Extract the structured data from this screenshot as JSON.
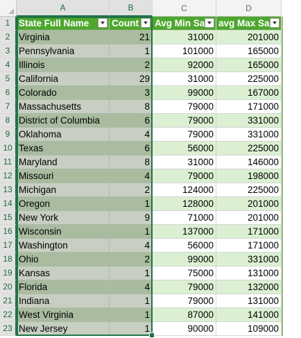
{
  "columns": [
    "A",
    "B",
    "C",
    "D"
  ],
  "headers": {
    "a": "State Full Name",
    "b": "Count",
    "c": "Avg Min Sal",
    "d": "avg Max Sal"
  },
  "rows": [
    {
      "n": "2",
      "state": "Virginia",
      "count": "21",
      "min": "31000",
      "max": "201000"
    },
    {
      "n": "3",
      "state": "Pennsylvania",
      "count": "1",
      "min": "101000",
      "max": "165000"
    },
    {
      "n": "4",
      "state": "Illinois",
      "count": "2",
      "min": "92000",
      "max": "165000"
    },
    {
      "n": "5",
      "state": "California",
      "count": "29",
      "min": "31000",
      "max": "225000"
    },
    {
      "n": "6",
      "state": "Colorado",
      "count": "3",
      "min": "99000",
      "max": "167000"
    },
    {
      "n": "7",
      "state": "Massachusetts",
      "count": "8",
      "min": "79000",
      "max": "171000"
    },
    {
      "n": "8",
      "state": "District of Columbia",
      "count": "6",
      "min": "79000",
      "max": "331000"
    },
    {
      "n": "9",
      "state": "Oklahoma",
      "count": "4",
      "min": "79000",
      "max": "331000"
    },
    {
      "n": "10",
      "state": "Texas",
      "count": "6",
      "min": "56000",
      "max": "225000"
    },
    {
      "n": "11",
      "state": "Maryland",
      "count": "8",
      "min": "31000",
      "max": "146000"
    },
    {
      "n": "12",
      "state": "Missouri",
      "count": "4",
      "min": "79000",
      "max": "198000"
    },
    {
      "n": "13",
      "state": "Michigan",
      "count": "2",
      "min": "124000",
      "max": "225000"
    },
    {
      "n": "14",
      "state": "Oregon",
      "count": "1",
      "min": "128000",
      "max": "201000"
    },
    {
      "n": "15",
      "state": "New York",
      "count": "9",
      "min": "71000",
      "max": "201000"
    },
    {
      "n": "16",
      "state": "Wisconsin",
      "count": "1",
      "min": "137000",
      "max": "171000"
    },
    {
      "n": "17",
      "state": "Washington",
      "count": "4",
      "min": "56000",
      "max": "171000"
    },
    {
      "n": "18",
      "state": "Ohio",
      "count": "2",
      "min": "99000",
      "max": "331000"
    },
    {
      "n": "19",
      "state": "Kansas",
      "count": "1",
      "min": "75000",
      "max": "131000"
    },
    {
      "n": "20",
      "state": "Florida",
      "count": "4",
      "min": "79000",
      "max": "132000"
    },
    {
      "n": "21",
      "state": "Indiana",
      "count": "1",
      "min": "79000",
      "max": "131000"
    },
    {
      "n": "22",
      "state": "West Virginia",
      "count": "1",
      "min": "87000",
      "max": "141000"
    },
    {
      "n": "23",
      "state": "New Jersey",
      "count": "1",
      "min": "90000",
      "max": "109000"
    }
  ],
  "header_row_number": "1",
  "colors": {
    "table_header": "#4ea72e",
    "band_dark": "#dbf0d2",
    "selection_border": "#217346"
  }
}
